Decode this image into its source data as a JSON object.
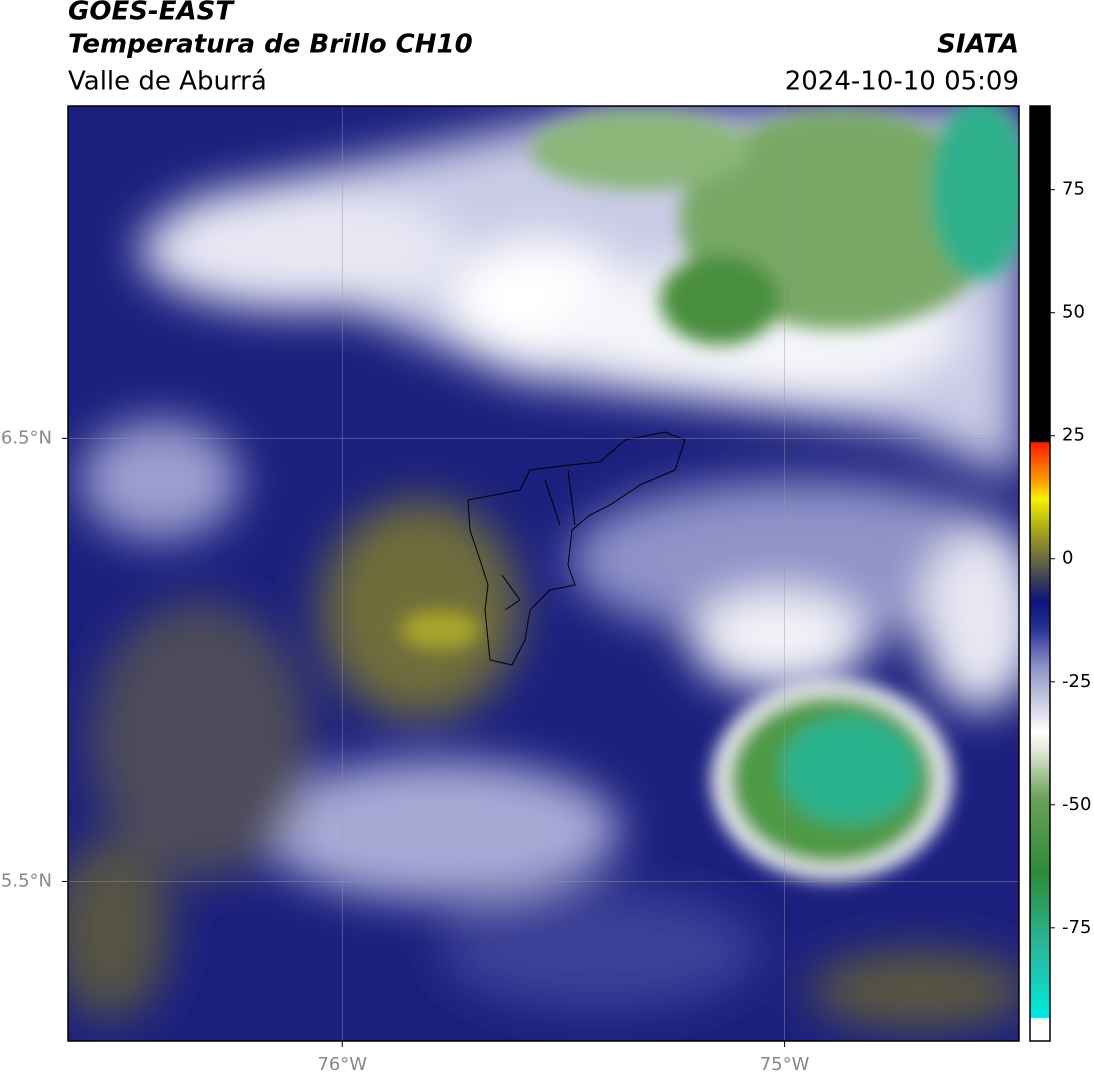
{
  "header": {
    "title": "GOES-EAST",
    "subtitle": "Temperatura de Brillo CH10",
    "region": "Valle de Aburrá",
    "source": "SIATA",
    "datetime": "2024-10-10 05:09"
  },
  "map": {
    "xlim": [
      -76.62,
      -74.47
    ],
    "ylim": [
      5.14,
      7.25
    ],
    "xticks": [
      {
        "value": -76,
        "label": "76°W"
      },
      {
        "value": -75,
        "label": "75°W"
      }
    ],
    "yticks": [
      {
        "value": 6.5,
        "label": "6.5°N"
      },
      {
        "value": 5.5,
        "label": "5.5°N"
      }
    ],
    "grid": true
  },
  "colorbar": {
    "lim": [
      -98,
      92
    ],
    "ticks": [
      75,
      50,
      25,
      0,
      -25,
      -50,
      -75
    ]
  }
}
